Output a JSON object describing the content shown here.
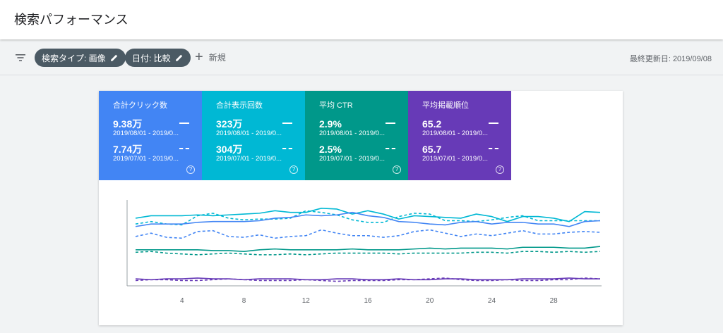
{
  "header": {
    "title": "検索パフォーマンス"
  },
  "toolbar": {
    "filter_icon": "filter-icon",
    "chips": [
      {
        "label": "検索タイプ: 画像",
        "icon": "pencil-icon"
      },
      {
        "label": "日付: 比較",
        "icon": "pencil-icon"
      }
    ],
    "new_label": "新規",
    "last_updated": "最終更新日: 2019/09/08"
  },
  "colors": {
    "clicks": "#4285f4",
    "impressions": "#00b8d4",
    "ctr": "#00988a",
    "position": "#673ab7"
  },
  "metrics": [
    {
      "label": "合計クリック数",
      "value_current": "9.38万",
      "date_current": "2019/08/01 - 2019/0...",
      "value_previous": "7.74万",
      "date_previous": "2019/07/01 - 2019/0..."
    },
    {
      "label": "合計表示回数",
      "value_current": "323万",
      "date_current": "2019/08/01 - 2019/0...",
      "value_previous": "304万",
      "date_previous": "2019/07/01 - 2019/0..."
    },
    {
      "label": "平均 CTR",
      "value_current": "2.9%",
      "date_current": "2019/08/01 - 2019/0...",
      "value_previous": "2.5%",
      "date_previous": "2019/07/01 - 2019/0..."
    },
    {
      "label": "平均掲載順位",
      "value_current": "65.2",
      "date_current": "2019/08/01 - 2019/0...",
      "value_previous": "65.7",
      "date_previous": "2019/07/01 - 2019/0..."
    }
  ],
  "chart_data": {
    "type": "line",
    "x": [
      1,
      2,
      3,
      4,
      5,
      6,
      7,
      8,
      9,
      10,
      11,
      12,
      13,
      14,
      15,
      16,
      17,
      18,
      19,
      20,
      21,
      22,
      23,
      24,
      25,
      26,
      27,
      28,
      29,
      30,
      31
    ],
    "xticks": [
      "4",
      "8",
      "12",
      "16",
      "20",
      "24",
      "28"
    ],
    "xtick_values": [
      4,
      8,
      12,
      16,
      20,
      24,
      28
    ],
    "ylim": [
      0,
      100
    ],
    "series": [
      {
        "key": "impressions_current",
        "color": "#00b8d4",
        "dashed": false,
        "values": [
          78,
          81,
          81,
          81,
          82,
          81,
          82,
          83,
          84,
          87,
          85,
          85,
          90,
          89,
          83,
          87,
          83,
          77,
          81,
          80,
          79,
          78,
          83,
          80,
          74,
          80,
          80,
          78,
          74,
          86,
          85
        ]
      },
      {
        "key": "impressions_previous",
        "color": "#00b8d4",
        "dashed": true,
        "values": [
          71,
          74,
          71,
          70,
          81,
          84,
          78,
          76,
          77,
          77,
          78,
          87,
          85,
          82,
          76,
          73,
          73,
          80,
          84,
          83,
          75,
          75,
          74,
          76,
          79,
          81,
          75,
          75,
          75,
          75,
          75
        ]
      },
      {
        "key": "clicks_current",
        "color": "#4285f4",
        "dashed": false,
        "values": [
          68,
          71,
          71,
          71,
          73,
          74,
          74,
          74,
          75,
          78,
          79,
          82,
          81,
          82,
          85,
          81,
          79,
          74,
          73,
          71,
          70,
          73,
          74,
          71,
          73,
          73,
          71,
          71,
          68,
          74,
          75
        ]
      },
      {
        "key": "clicks_previous",
        "color": "#4285f4",
        "dashed": true,
        "values": [
          56,
          60,
          55,
          54,
          62,
          63,
          56,
          55,
          58,
          54,
          56,
          57,
          64,
          60,
          57,
          57,
          55,
          57,
          62,
          64,
          60,
          56,
          59,
          57,
          60,
          63,
          59,
          59,
          61,
          62,
          61
        ]
      },
      {
        "key": "ctr_current",
        "color": "#00988a",
        "dashed": false,
        "values": [
          40,
          40,
          40,
          40,
          40,
          39,
          39,
          38,
          40,
          41,
          40,
          40,
          40,
          40,
          41,
          40,
          40,
          40,
          41,
          42,
          41,
          42,
          42,
          42,
          41,
          43,
          43,
          43,
          42,
          42,
          44
        ]
      },
      {
        "key": "ctr_previous",
        "color": "#00988a",
        "dashed": true,
        "values": [
          37,
          38,
          36,
          35,
          34,
          35,
          36,
          35,
          34,
          34,
          35,
          34,
          35,
          36,
          36,
          36,
          36,
          35,
          36,
          36,
          36,
          36,
          37,
          37,
          36,
          38,
          38,
          37,
          38,
          37,
          38
        ]
      },
      {
        "key": "position_current",
        "color": "#673ab7",
        "dashed": false,
        "values": [
          5,
          4,
          5,
          5,
          6,
          5,
          5,
          4,
          5,
          5,
          5,
          4,
          4,
          5,
          5,
          4,
          4,
          5,
          4,
          4,
          5,
          5,
          4,
          4,
          4,
          5,
          5,
          5,
          6,
          5,
          5
        ]
      },
      {
        "key": "position_previous",
        "color": "#673ab7",
        "dashed": true,
        "values": [
          3,
          4,
          4,
          3,
          3,
          4,
          5,
          4,
          3,
          3,
          3,
          4,
          3,
          2,
          3,
          3,
          3,
          4,
          4,
          5,
          6,
          4,
          3,
          3,
          4,
          3,
          3,
          4,
          4,
          6,
          5
        ]
      }
    ]
  }
}
